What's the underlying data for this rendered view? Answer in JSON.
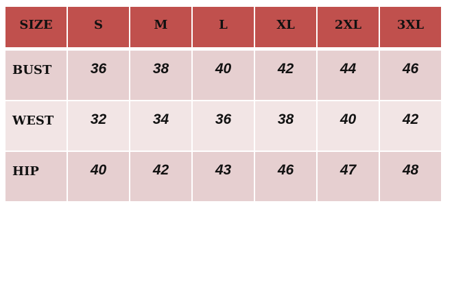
{
  "colors": {
    "header": "#c0504d",
    "row_odd": "#e6cfd0",
    "row_even": "#f2e5e5"
  },
  "table": {
    "headers": [
      "SIZE",
      "S",
      "M",
      "L",
      "XL",
      "2XL",
      "3XL"
    ],
    "rows": [
      {
        "label": "BUST",
        "values": [
          "36",
          "38",
          "40",
          "42",
          "44",
          "46"
        ]
      },
      {
        "label": "WEST",
        "values": [
          "32",
          "34",
          "36",
          "38",
          "40",
          "42"
        ]
      },
      {
        "label": "HIP",
        "values": [
          "40",
          "42",
          "43",
          "46",
          "47",
          "48"
        ]
      }
    ]
  }
}
